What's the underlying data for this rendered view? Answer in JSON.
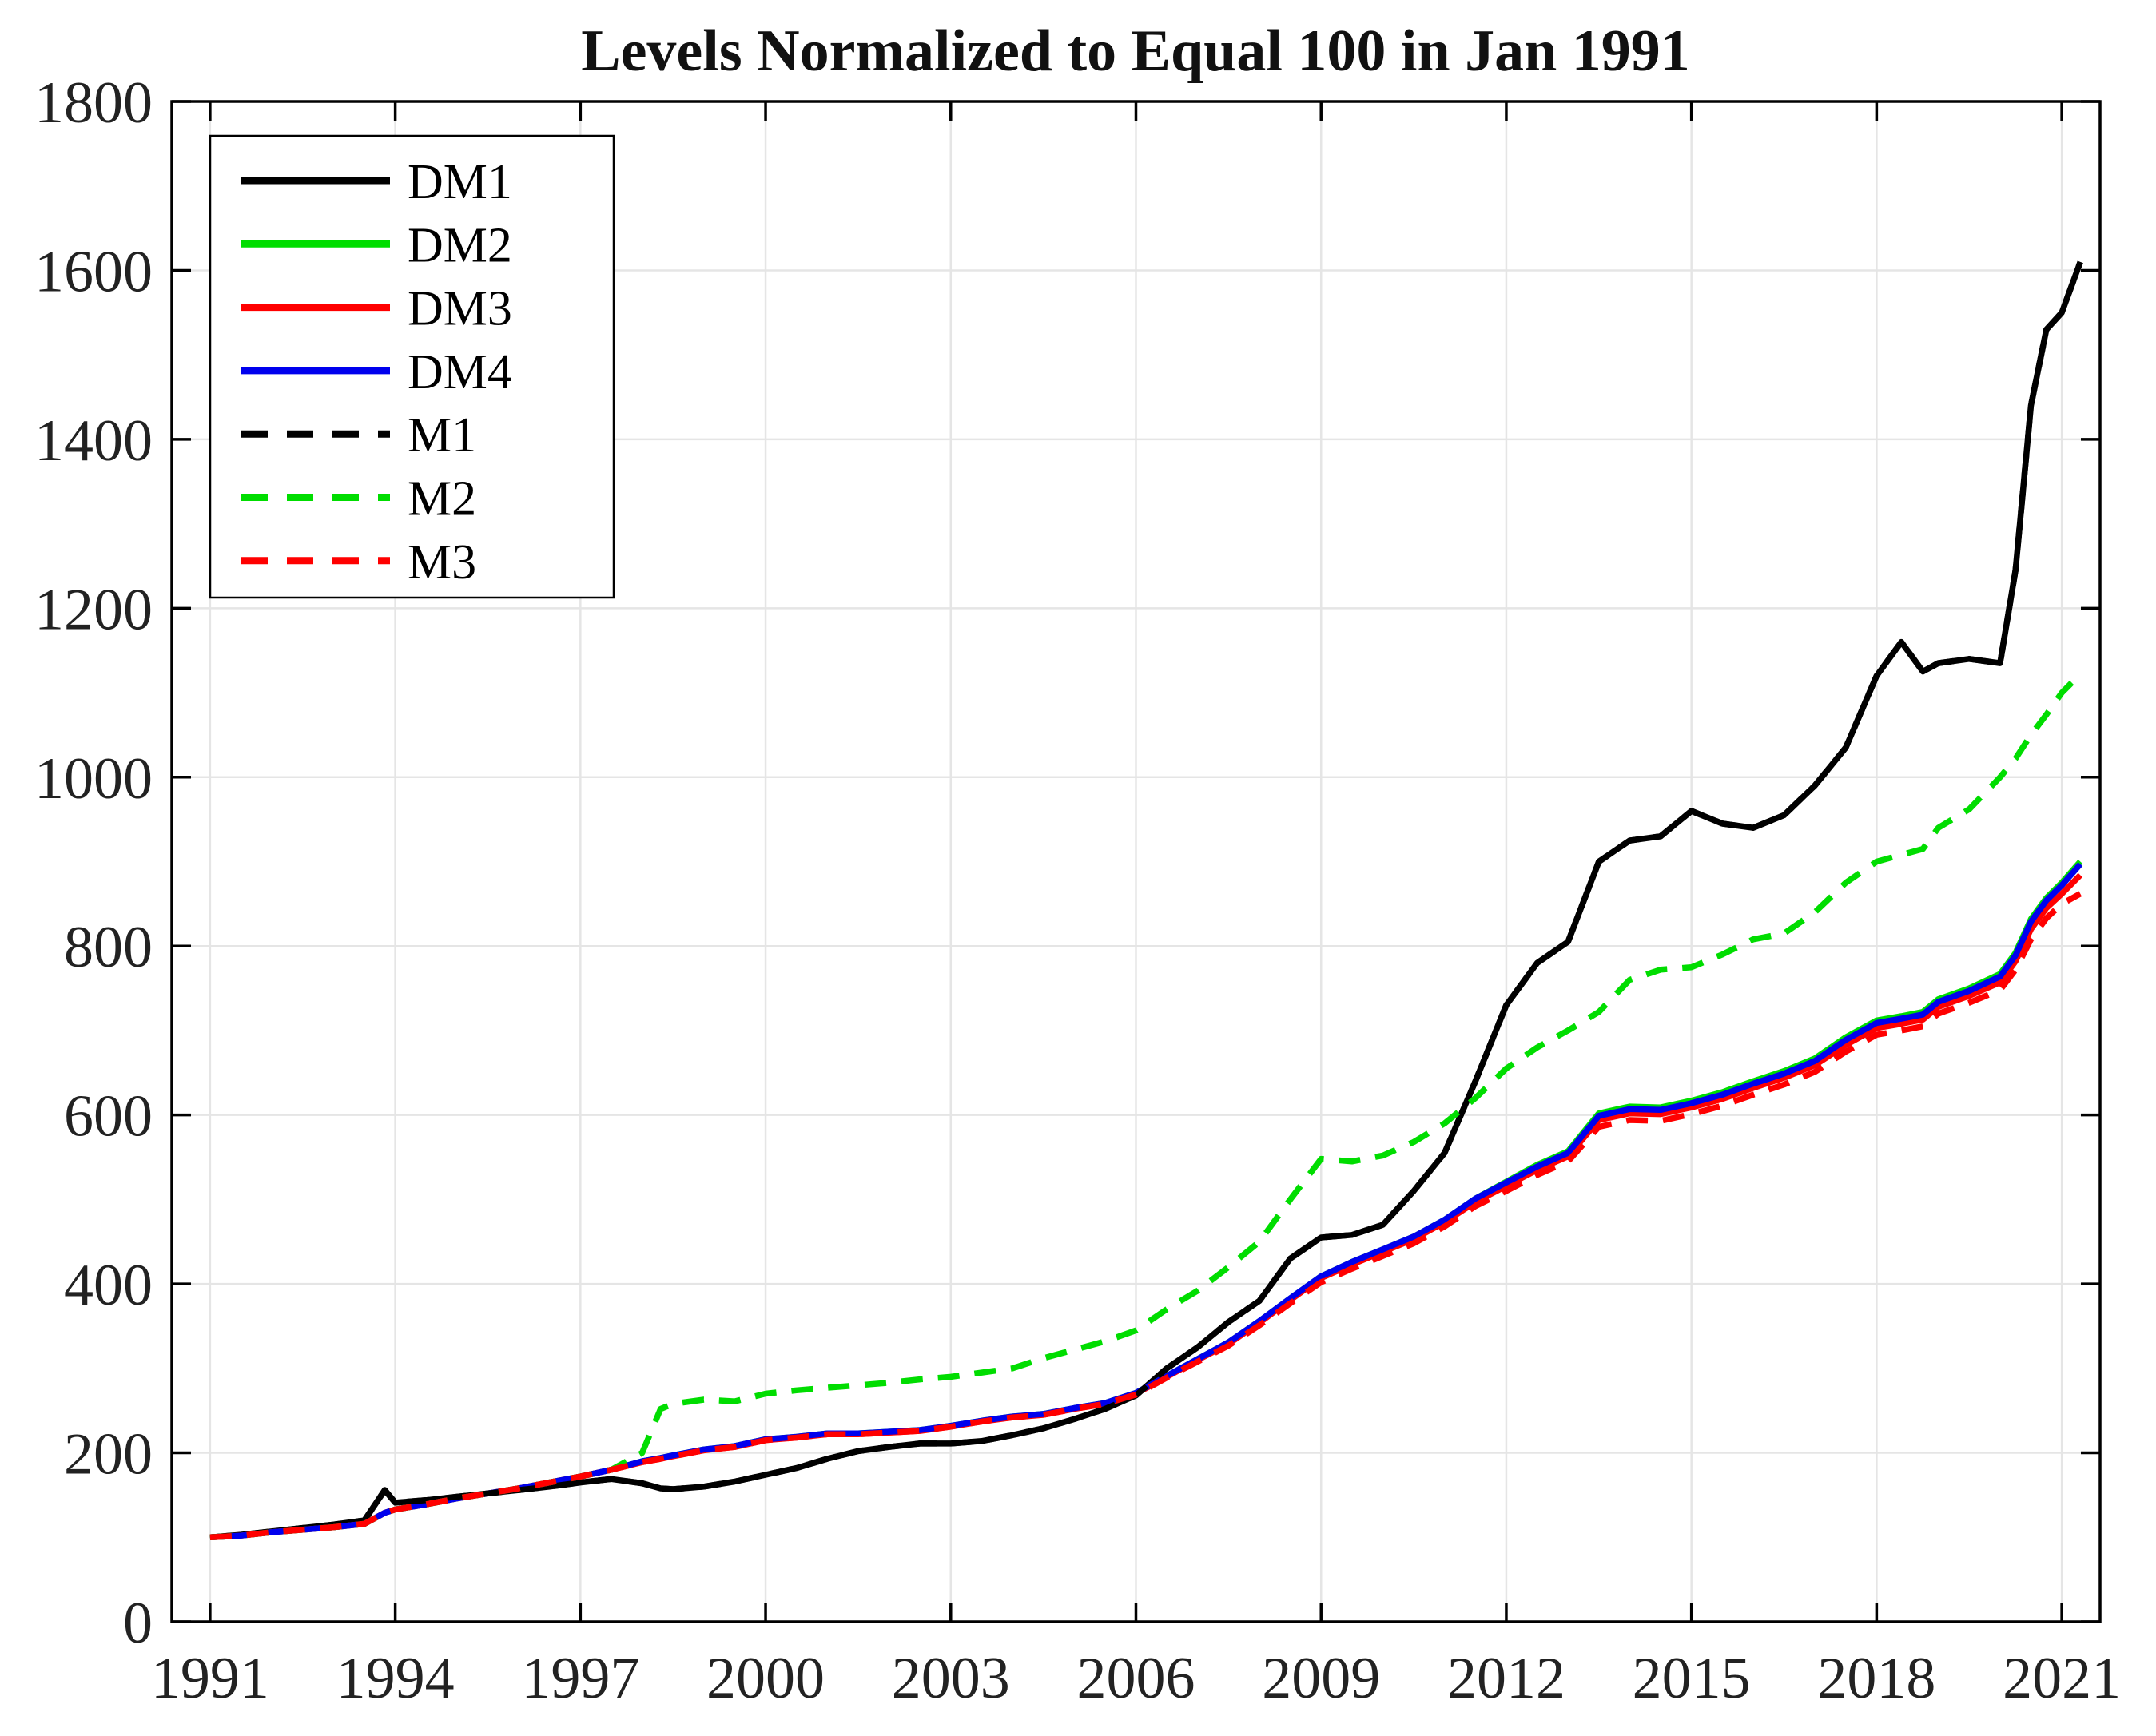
{
  "chart_data": {
    "type": "line",
    "title": "Levels Normalized to Equal 100 in Jan 1991",
    "xlabel": "",
    "ylabel": "",
    "xlim": [
      1990.38,
      2021.62
    ],
    "ylim": [
      0,
      1800
    ],
    "grid": true,
    "legend_position": "top-left",
    "x_ticks": [
      1991,
      1994,
      1997,
      2000,
      2003,
      2006,
      2009,
      2012,
      2015,
      2018,
      2021
    ],
    "x_tick_labels": [
      "1991",
      "1994",
      "1997",
      "2000",
      "2003",
      "2006",
      "2009",
      "2012",
      "2015",
      "2018",
      "2021"
    ],
    "y_ticks": [
      0,
      200,
      400,
      600,
      800,
      1000,
      1200,
      1400,
      1600,
      1800
    ],
    "y_tick_labels": [
      "0",
      "200",
      "400",
      "600",
      "800",
      "1000",
      "1200",
      "1400",
      "1600",
      "1800"
    ],
    "x": [
      1991,
      1991.5,
      1992,
      1992.5,
      1993,
      1993.5,
      1993.83,
      1994,
      1994.5,
      1995,
      1995.5,
      1996,
      1996.5,
      1997,
      1997.5,
      1998,
      1998.3,
      1998.5,
      1999,
      1999.5,
      2000,
      2000.5,
      2001,
      2001.5,
      2002,
      2002.5,
      2003,
      2003.5,
      2004,
      2004.5,
      2005,
      2005.5,
      2006,
      2006.5,
      2007,
      2007.5,
      2008,
      2008.5,
      2009,
      2009.5,
      2010,
      2010.5,
      2011,
      2011.5,
      2012,
      2012.5,
      2013,
      2013.5,
      2014,
      2014.5,
      2015,
      2015.5,
      2016,
      2016.5,
      2017,
      2017.5,
      2018,
      2018.4,
      2018.75,
      2019,
      2019.5,
      2020,
      2020.25,
      2020.5,
      2020.75,
      2021,
      2021.3
    ],
    "series": [
      {
        "name": "DM1",
        "style": "solid",
        "color": "#000000",
        "values": [
          100,
          103,
          107,
          111,
          115,
          120,
          156,
          141,
          144,
          148,
          152,
          156,
          160,
          165,
          169,
          164,
          158,
          157,
          160,
          166,
          174,
          182,
          193,
          202,
          207,
          211,
          211,
          214,
          221,
          229,
          240,
          252,
          268,
          300,
          325,
          355,
          380,
          430,
          455,
          458,
          470,
          510,
          555,
          640,
          730,
          780,
          805,
          900,
          925,
          930,
          960,
          945,
          940,
          955,
          990,
          1035,
          1120,
          1160,
          1125,
          1135,
          1140,
          1135,
          1245,
          1440,
          1530,
          1550,
          1610
        ]
      },
      {
        "name": "DM2",
        "style": "solid",
        "color": "#00dd00",
        "values": [
          100,
          102,
          106,
          109,
          112,
          116,
          129,
          133,
          139,
          146,
          152,
          158,
          165,
          172,
          180,
          190,
          194,
          197,
          204,
          208,
          216,
          219,
          223,
          223,
          225,
          227,
          232,
          238,
          243,
          246,
          253,
          259,
          271,
          291,
          311,
          331,
          356,
          383,
          409,
          426,
          441,
          456,
          476,
          501,
          521,
          541,
          557,
          602,
          610,
          609,
          617,
          627,
          640,
          652,
          667,
          692,
          712,
          717,
          722,
          737,
          750,
          767,
          792,
          832,
          857,
          875,
          900
        ]
      },
      {
        "name": "DM3",
        "style": "solid",
        "color": "#ff0000",
        "values": [
          100,
          102,
          106,
          109,
          112,
          116,
          129,
          133,
          139,
          146,
          152,
          158,
          165,
          172,
          180,
          189,
          193,
          196,
          203,
          207,
          215,
          218,
          222,
          222,
          224,
          226,
          231,
          237,
          242,
          245,
          252,
          258,
          270,
          290,
          310,
          329,
          354,
          381,
          407,
          423,
          438,
          453,
          473,
          497,
          516,
          535,
          551,
          594,
          602,
          601,
          609,
          619,
          632,
          644,
          659,
          683,
          703,
          708,
          713,
          728,
          741,
          757,
          782,
          820,
          845,
          862,
          884
        ]
      },
      {
        "name": "DM4",
        "style": "solid",
        "color": "#0000ee",
        "values": [
          100,
          102,
          106,
          109,
          112,
          116,
          129,
          133,
          139,
          146,
          152,
          158,
          165,
          172,
          180,
          190,
          194,
          197,
          204,
          208,
          216,
          219,
          223,
          223,
          225,
          227,
          232,
          238,
          243,
          246,
          253,
          259,
          271,
          291,
          311,
          331,
          356,
          383,
          409,
          426,
          441,
          456,
          476,
          501,
          520,
          539,
          555,
          599,
          607,
          606,
          614,
          624,
          637,
          649,
          664,
          689,
          709,
          714,
          719,
          734,
          747,
          764,
          789,
          829,
          854,
          872,
          897
        ]
      },
      {
        "name": "M1",
        "style": "dashed",
        "color": "#000000",
        "values": [
          100,
          103,
          107,
          111,
          115,
          120,
          156,
          141,
          144,
          148,
          152,
          156,
          160,
          165,
          169,
          164,
          158,
          157,
          160,
          166,
          174,
          182,
          193,
          202,
          207,
          211,
          211,
          214,
          221,
          229,
          240,
          252,
          268,
          300,
          325,
          355,
          380,
          430,
          455,
          458,
          470,
          510,
          555,
          640,
          730,
          780,
          805,
          900,
          925,
          930,
          960,
          945,
          940,
          955,
          990,
          1035,
          1120,
          1160,
          1125,
          1135,
          1140,
          1135,
          1245,
          1440,
          1530,
          1550,
          1610
        ]
      },
      {
        "name": "M2",
        "style": "dashed",
        "color": "#00dd00",
        "values": [
          100,
          102,
          106,
          109,
          112,
          116,
          129,
          133,
          139,
          146,
          152,
          158,
          165,
          172,
          180,
          200,
          252,
          258,
          263,
          261,
          270,
          274,
          277,
          280,
          283,
          287,
          290,
          295,
          300,
          312,
          322,
          332,
          345,
          370,
          392,
          420,
          450,
          500,
          548,
          545,
          552,
          568,
          590,
          620,
          655,
          680,
          700,
          722,
          760,
          772,
          775,
          790,
          808,
          815,
          840,
          875,
          900,
          908,
          915,
          940,
          962,
          1000,
          1022,
          1050,
          1074,
          1100,
          1122
        ]
      },
      {
        "name": "M3",
        "style": "dashed",
        "color": "#ff0000",
        "values": [
          100,
          102,
          106,
          109,
          112,
          116,
          129,
          133,
          139,
          146,
          152,
          158,
          165,
          172,
          180,
          189,
          193,
          196,
          203,
          207,
          215,
          218,
          222,
          222,
          224,
          226,
          231,
          237,
          242,
          245,
          252,
          258,
          269,
          289,
          308,
          327,
          351,
          377,
          402,
          418,
          433,
          448,
          468,
          492,
          510,
          529,
          545,
          586,
          594,
          593,
          601,
          611,
          624,
          636,
          651,
          675,
          695,
          700,
          705,
          720,
          733,
          748,
          772,
          808,
          833,
          850,
          862
        ]
      }
    ],
    "legend": [
      {
        "label": "DM1",
        "style": "solid",
        "color": "#000000"
      },
      {
        "label": "DM2",
        "style": "solid",
        "color": "#00dd00"
      },
      {
        "label": "DM3",
        "style": "solid",
        "color": "#ff0000"
      },
      {
        "label": "DM4",
        "style": "solid",
        "color": "#0000ee"
      },
      {
        "label": "M1",
        "style": "dashed",
        "color": "#000000"
      },
      {
        "label": "M2",
        "style": "dashed",
        "color": "#00dd00"
      },
      {
        "label": "M3",
        "style": "dashed",
        "color": "#ff0000"
      }
    ],
    "colors": {
      "grid": "#e5e5e5",
      "spine": "#000000",
      "background": "#ffffff"
    }
  }
}
